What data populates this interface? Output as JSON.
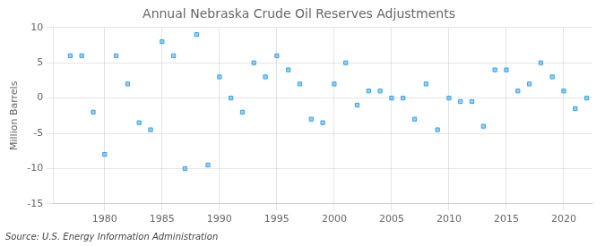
{
  "chart_data": {
    "type": "scatter",
    "title": "Annual Nebraska Crude Oil Reserves Adjustments",
    "ylabel": "Million Barrels",
    "annotations": [
      "Source: U.S. Energy Information Administration"
    ],
    "x": [
      1977,
      1978,
      1979,
      1980,
      1981,
      1982,
      1983,
      1984,
      1985,
      1986,
      1987,
      1988,
      1989,
      1990,
      1991,
      1992,
      1993,
      1994,
      1995,
      1996,
      1997,
      1998,
      1999,
      2000,
      2001,
      2002,
      2003,
      2004,
      2005,
      2006,
      2007,
      2008,
      2009,
      2010,
      2011,
      2012,
      2013,
      2014,
      2015,
      2016,
      2017,
      2018,
      2019,
      2020,
      2021,
      2022
    ],
    "values": [
      6.0,
      6.0,
      -2.0,
      -8.0,
      6.0,
      2.0,
      -3.5,
      -4.5,
      8.0,
      6.0,
      -10.0,
      9.0,
      -9.5,
      3.0,
      0.0,
      -2.0,
      5.0,
      3.0,
      6.0,
      4.0,
      2.0,
      -3.0,
      -3.5,
      2.0,
      5.0,
      -1.0,
      1.0,
      1.0,
      0.0,
      0.0,
      -3.0,
      2.0,
      -4.5,
      0.0,
      -0.5,
      -0.5,
      -4.0,
      4.0,
      4.0,
      1.0,
      2.0,
      5.0,
      3.0,
      1.0,
      -1.5,
      0.0
    ],
    "marker": "square",
    "xlim": [
      1975.5,
      2022.5
    ],
    "xticks": [
      1980,
      1985,
      1990,
      1995,
      2000,
      2005,
      2010,
      2015,
      2020
    ],
    "ylim": [
      -15,
      10
    ],
    "yticks": [
      -15,
      -10,
      -5,
      0,
      5,
      10
    ],
    "grid": true
  }
}
